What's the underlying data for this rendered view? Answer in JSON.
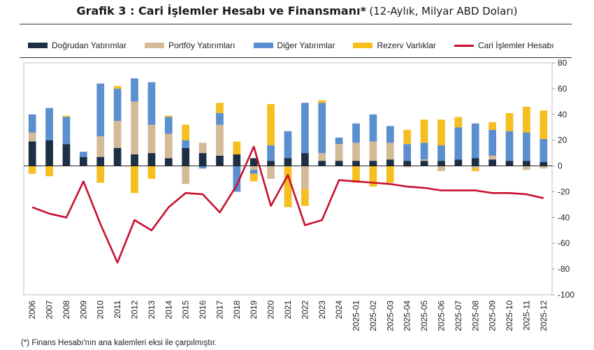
{
  "title": {
    "main": "Grafik 3 : Cari İşlemler Hesabı ve Finansmanı*",
    "sub": "(12-Aylık, Milyar ABD Doları)"
  },
  "footnote": "(*) Finans Hesabı'nın ana kalemleri eksi ile çarpılmıştır.",
  "colors": {
    "dogrudan": "#1c2f45",
    "portfoy": "#d3bb98",
    "diger": "#5b8fcf",
    "rezerv": "#f6be1e",
    "cari": "#c8102e",
    "grid": "#dddddd"
  },
  "chart_data": {
    "type": "bar",
    "stacked": true,
    "categories": [
      "2006",
      "2007",
      "2008",
      "2009",
      "2010",
      "2011",
      "2012",
      "2013",
      "2014",
      "2015",
      "2016",
      "2017",
      "2018",
      "2019",
      "2020",
      "2021",
      "2022",
      "2023",
      "2024",
      "2025-01",
      "2025-02",
      "2025-03",
      "2025-04",
      "2025-05",
      "2025-06",
      "2025-07",
      "2025-08",
      "2025-09",
      "2025-10",
      "2025-11",
      "2025-12"
    ],
    "series": [
      {
        "name": "Doğrudan Yatırımlar",
        "key": "dogrudan",
        "type": "bar",
        "values": [
          19,
          20,
          17,
          7,
          7,
          14,
          9,
          10,
          6,
          14,
          10,
          8,
          9,
          6,
          4,
          6,
          10,
          4,
          4,
          4,
          4,
          5,
          4,
          4,
          4,
          5,
          6,
          5,
          4,
          4,
          3
        ]
      },
      {
        "name": "Portföy Yatırımları",
        "key": "portfoy",
        "type": "bar",
        "values": [
          7,
          0,
          0,
          0,
          16,
          21,
          41,
          22,
          19,
          -14,
          8,
          24,
          0,
          -3,
          -10,
          -1,
          -18,
          6,
          13,
          14,
          15,
          13,
          -1,
          1,
          -4,
          0,
          -2,
          3,
          0,
          -3,
          -2
        ]
      },
      {
        "name": "Diğer Yatırımlar",
        "key": "diger",
        "type": "bar",
        "values": [
          14,
          25,
          21,
          4,
          41,
          25,
          18,
          33,
          13,
          6,
          -2,
          9,
          -20,
          -3,
          12,
          21,
          39,
          39,
          5,
          15,
          21,
          13,
          13,
          13,
          12,
          25,
          27,
          20,
          23,
          22,
          18
        ]
      },
      {
        "name": "Rezerv Varlıklar",
        "key": "rezerv",
        "type": "bar",
        "values": [
          -6,
          -8,
          1,
          0,
          -13,
          2,
          -21,
          -10,
          1,
          12,
          0,
          8,
          10,
          -6,
          32,
          -31,
          -13,
          2,
          0,
          -13,
          -16,
          -13,
          11,
          18,
          20,
          8,
          -2,
          6,
          14,
          20,
          22
        ]
      },
      {
        "name": "Cari İşlemler Hesabı",
        "key": "cari",
        "type": "line",
        "values": [
          -32,
          -37,
          -40,
          -12,
          -45,
          -75,
          -42,
          -50,
          -32,
          -21,
          -22,
          -36,
          -15,
          15,
          -31,
          -7,
          -46,
          -42,
          -11,
          -12,
          -13,
          -14,
          -16,
          -17,
          -19,
          -19,
          -19,
          -21,
          -21,
          -22,
          -25
        ]
      }
    ],
    "ylim": [
      -100,
      80
    ],
    "yticks": [
      -100,
      -80,
      -60,
      -40,
      -20,
      0,
      20,
      40,
      60,
      80
    ],
    "axis_side": "right",
    "grid": false,
    "legend_position": "top"
  }
}
